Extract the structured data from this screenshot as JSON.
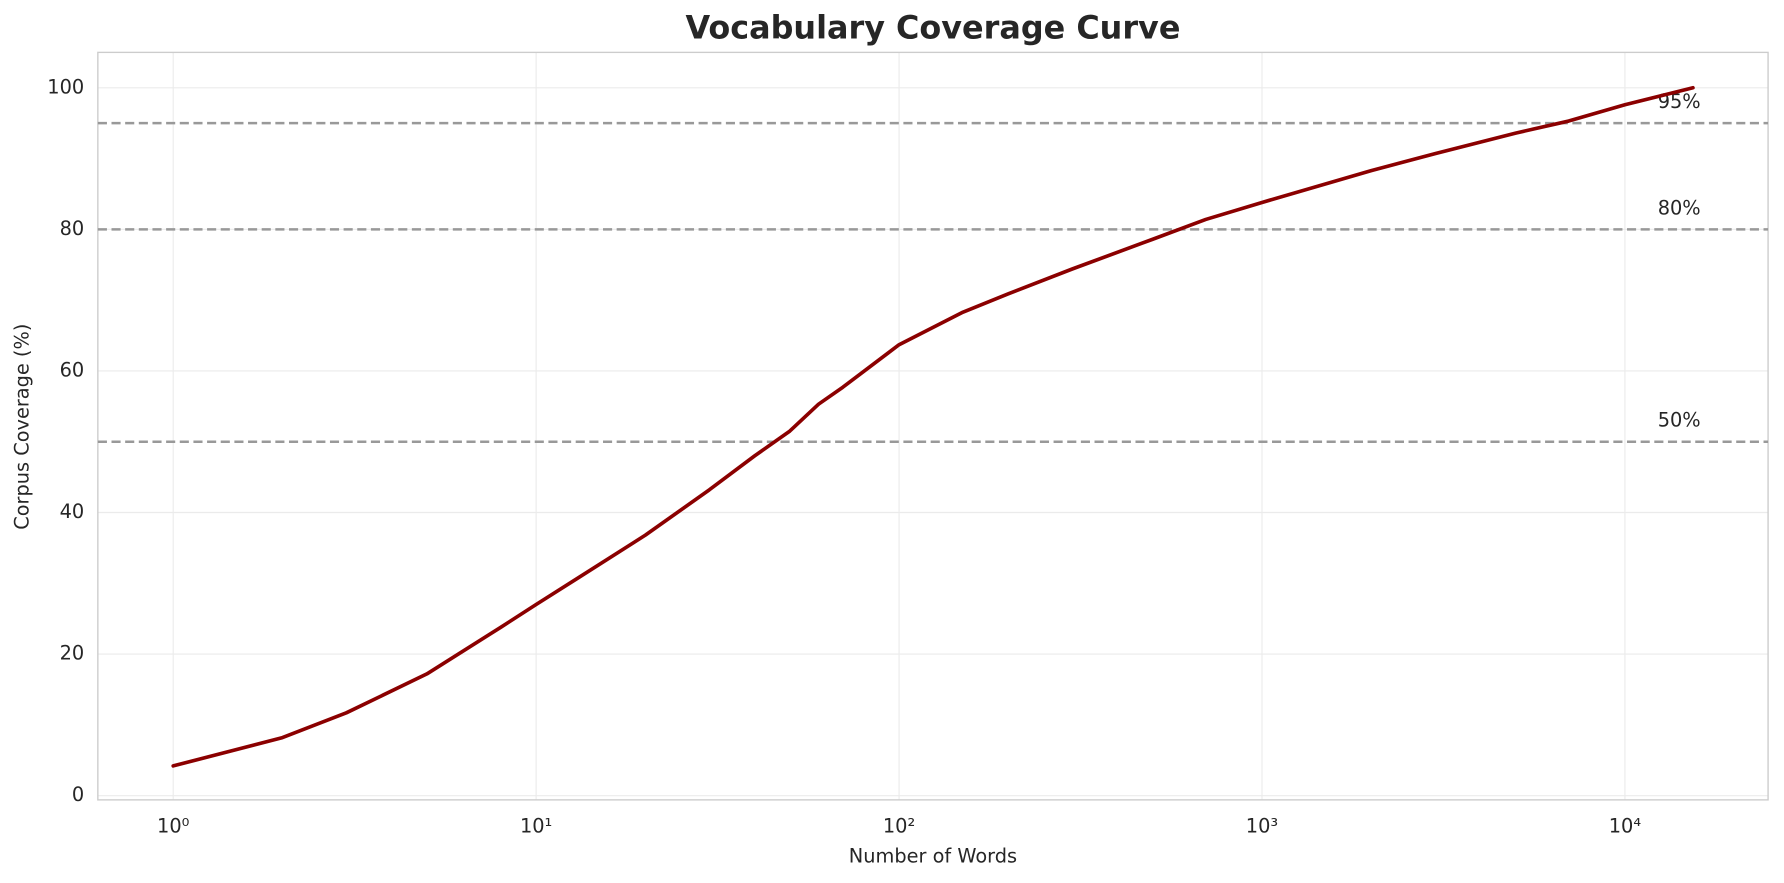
{
  "chart_data": {
    "type": "line",
    "title": "Vocabulary Coverage Curve",
    "xlabel": "Number of Words",
    "ylabel": "Corpus Coverage (%)",
    "log_x": true,
    "grid": true,
    "x": [
      1,
      2,
      3,
      5,
      8,
      10,
      13,
      20,
      30,
      40,
      50,
      60,
      70,
      100,
      150,
      200,
      300,
      500,
      700,
      1000,
      2000,
      3000,
      5000,
      7000,
      10000,
      15400
    ],
    "values": [
      4.2,
      8.2,
      11.7,
      17.2,
      23.8,
      27,
      30.7,
      36.8,
      43.2,
      48,
      51.5,
      55.3,
      57.7,
      63.7,
      68.3,
      70.9,
      74.4,
      78.6,
      81.4,
      83.8,
      88.3,
      90.7,
      93.6,
      95.3,
      97.6,
      100
    ],
    "color": "#8b0000",
    "xlim": [
      0.62,
      24800
    ],
    "ylim": [
      -0.6,
      105
    ],
    "xticks": [
      {
        "value": 1,
        "label": "10⁰"
      },
      {
        "value": 10,
        "label": "10¹"
      },
      {
        "value": 100,
        "label": "10²"
      },
      {
        "value": 1000,
        "label": "10³"
      },
      {
        "value": 10000,
        "label": "10⁴"
      }
    ],
    "yticks": [
      0,
      20,
      40,
      60,
      80,
      100
    ],
    "hlines": [
      {
        "value": 50,
        "label": "50%"
      },
      {
        "value": 80,
        "label": "80%"
      },
      {
        "value": 95,
        "label": "95%"
      }
    ],
    "hline_color": "#999999"
  }
}
